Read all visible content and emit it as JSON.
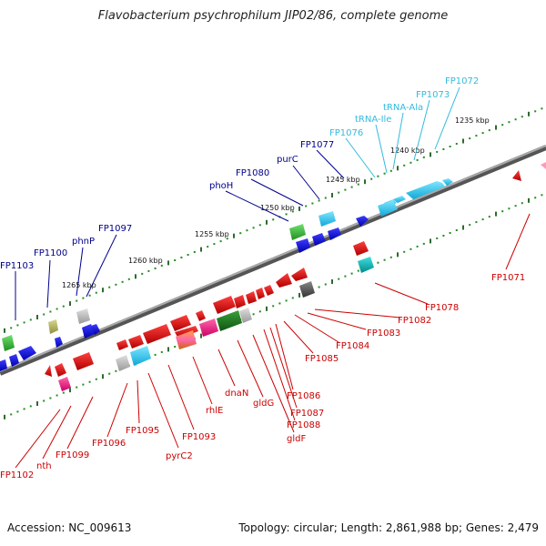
{
  "title": "Flavobacterium psychrophilum JIP02/86, complete genome",
  "footer": {
    "accession": "Accession: NC_009613",
    "summary": "Topology: circular; Length: 2,861,988 bp; Genes: 2,479"
  },
  "colors": {
    "backbone": "#777777",
    "forward_label": "#00008b",
    "rna_label": "#33bbdd",
    "reverse_label": "#cc0000",
    "tick_green": "#228B22",
    "tick_dark": "#2d6b2d"
  },
  "scale_labels": [
    "1235 kbp",
    "1240 kbp",
    "1245 kbp",
    "1250 kbp",
    "1255 kbp",
    "1260 kbp",
    "1265 kbp"
  ],
  "forward_labels": [
    "FP1072",
    "FP1073",
    "tRNA-Ala",
    "tRNA-Ile",
    "FP1076",
    "FP1077",
    "purC",
    "FP1080",
    "phoH",
    "FP1097",
    "phnP",
    "FP1100",
    "FP1103"
  ],
  "reverse_labels": [
    "FP1071",
    "FP1078",
    "FP1082",
    "FP1083",
    "FP1084",
    "FP1085",
    "FP1086",
    "FP1087",
    "FP1088",
    "gldF",
    "gldG",
    "dnaN",
    "rhlE",
    "FP1093",
    "pyrC2",
    "FP1095",
    "FP1096",
    "FP1099",
    "nth",
    "FP1102"
  ],
  "legend_note": ""
}
